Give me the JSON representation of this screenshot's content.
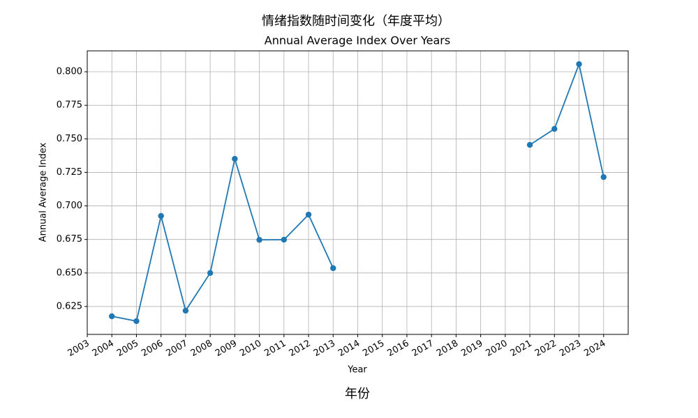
{
  "chart_data": {
    "type": "line",
    "title": "情绪指数随时间变化（年度平均）",
    "subtitle": "Annual Average Index Over Years",
    "x_label": "Year",
    "y_label": "Annual Average Index",
    "figure_xlabel": "年份",
    "x": [
      2004,
      2005,
      2006,
      2007,
      2008,
      2009,
      2010,
      2011,
      2012,
      2013,
      2014,
      2015,
      2016,
      2017,
      2018,
      2019,
      2020,
      2021,
      2022,
      2023,
      2024
    ],
    "series": [
      {
        "color": "#1f77b4",
        "values": [
          0.6177,
          0.6141,
          0.6925,
          0.6219,
          0.65,
          0.7351,
          0.6747,
          0.6748,
          0.6935,
          0.6536,
          null,
          null,
          null,
          null,
          null,
          null,
          null,
          0.7455,
          0.7574,
          0.8057,
          0.7215
        ]
      }
    ],
    "xlim": [
      2003,
      2025
    ],
    "xticks": [
      2003,
      2004,
      2005,
      2006,
      2007,
      2008,
      2009,
      2010,
      2011,
      2012,
      2013,
      2014,
      2015,
      2016,
      2017,
      2018,
      2019,
      2020,
      2021,
      2022,
      2023,
      2024
    ],
    "ylim": [
      0.6042,
      0.8156
    ],
    "yticks": [
      {
        "value": 0.625,
        "label": "0.625"
      },
      {
        "value": 0.65,
        "label": "0.650"
      },
      {
        "value": 0.675,
        "label": "0.675"
      },
      {
        "value": 0.7,
        "label": "0.700"
      },
      {
        "value": 0.725,
        "label": "0.725"
      },
      {
        "value": 0.75,
        "label": "0.750"
      },
      {
        "value": 0.775,
        "label": "0.775"
      },
      {
        "value": 0.8,
        "label": "0.800"
      }
    ],
    "grid": true
  }
}
